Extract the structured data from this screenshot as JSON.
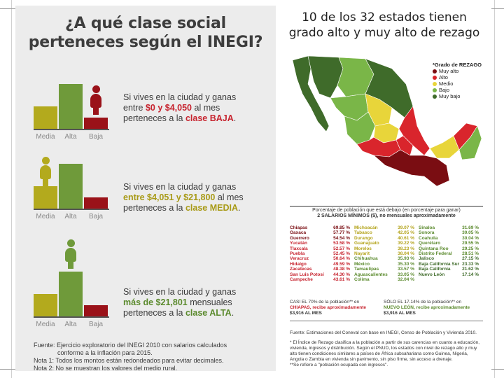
{
  "left": {
    "title": "¿A qué clase social perteneces según el INEGI?",
    "bar_labels": [
      "Media",
      "Alta",
      "Baja"
    ],
    "blocks": [
      {
        "line1": "Si vives en la ciudad y ganas",
        "line2_pre": "entre ",
        "line2_hl": "$0 y $4,050",
        "line2_post": " al mes",
        "line3_pre": "perteneces a la ",
        "line3_hl": "clase BAJA",
        "line3_post": ".",
        "values": {
          "media": 0.42,
          "alta": 0.82,
          "baja": 0.22
        }
      },
      {
        "line1": "Si vives en la ciudad y ganas",
        "line2_pre": "",
        "line2_hl": "entre $4,051 y $21,800",
        "line2_post": " al mes",
        "line3_pre": "perteneces a la ",
        "line3_hl": "clase MEDIA",
        "line3_post": ".",
        "values": {
          "media": 0.42,
          "alta": 0.82,
          "baja": 0.22
        }
      },
      {
        "line1": "Si vives en la ciudad y ganas",
        "line2_pre": "",
        "line2_hl": "más de $21,801",
        "line2_post": " mensuales",
        "line3_pre": "perteneces a la ",
        "line3_hl": "clase ALTA",
        "line3_post": ".",
        "values": {
          "media": 0.42,
          "alta": 0.82,
          "baja": 0.22
        }
      }
    ],
    "fuente1": "Fuente: Ejercicio exploratorio del INEGI 2010 con salarios calculados",
    "fuente2": "conforme a la inflación para 2015.",
    "nota1": "Nota 1: Todos los montos están redondeados para evitar decimales.",
    "nota2": "Nota 2: No se muestran los valores del medio rural."
  },
  "right": {
    "title1": "10 de los 32 estados tienen",
    "title2": "grado alto y muy alto de rezago",
    "legend_title": "*Grado de REZAGO",
    "legend": [
      {
        "label": "Muy alto",
        "color": "#7a0d12"
      },
      {
        "label": "Alto",
        "color": "#d9252c"
      },
      {
        "label": "Medio",
        "color": "#e8d53a"
      },
      {
        "label": "Bajo",
        "color": "#7ab648"
      },
      {
        "label": "Muy bajo",
        "color": "#3f6b2a"
      }
    ],
    "table_title_1": "Porcentaje de población que está debajo (en porcentaje para ganar)",
    "table_title_2": "2 SALARIOS MÍNIMOS ($), no mensuales aproximadamente",
    "col1": [
      [
        "Chiapas",
        "69.85 %"
      ],
      [
        "Oaxaca",
        "57.77 %"
      ],
      [
        "Guerrero",
        "54.54 %"
      ],
      [
        "Yucatán",
        "53.58 %"
      ],
      [
        "Tlaxcala",
        "52.57 %"
      ],
      [
        "Puebla",
        "52.45 %"
      ],
      [
        "Veracruz",
        "50.64 %"
      ],
      [
        "Hidalgo",
        "49.59 %"
      ],
      [
        "Zacatecas",
        "48.38 %"
      ],
      [
        "San Luis Potosí",
        "44.30 %"
      ],
      [
        "Campeche",
        "43.61 %"
      ]
    ],
    "col2": [
      [
        "Michoacán",
        "39.07 %"
      ],
      [
        "Tabasco",
        "42.05 %"
      ],
      [
        "Durango",
        "40.61 %"
      ],
      [
        "Guanajuato",
        "39.22 %"
      ],
      [
        "Morelos",
        "38.23 %"
      ],
      [
        "Nayarit",
        "38.04 %"
      ],
      [
        "Chihuahua",
        "35.93 %"
      ],
      [
        "México",
        "35.30 %"
      ],
      [
        "Tamaulipas",
        "33.57 %"
      ],
      [
        "Aguascalientes",
        "33.05 %"
      ],
      [
        "Colima",
        "32.04 %"
      ]
    ],
    "col3": [
      [
        "Sinaloa",
        "31.69 %"
      ],
      [
        "Sonora",
        "30.05 %"
      ],
      [
        "Coahuila",
        "30.04 %"
      ],
      [
        "Querétaro",
        "29.55 %"
      ],
      [
        "Quintana Roo",
        "29.25 %"
      ],
      [
        "Distrito Federal",
        "28.51 %"
      ],
      [
        "Jalisco",
        "27.15 %"
      ],
      [
        "Baja California Sur",
        "23.33 %"
      ],
      [
        "Baja California",
        "21.62 %"
      ],
      [
        "Nuevo León",
        "17.14 %"
      ]
    ],
    "summary1_a": "CASI EL 70% de la población** en",
    "summary1_b": "CHIAPAS, recibe aproximadamente",
    "summary1_c": "$3,916 AL MES",
    "summary2_a": "SÓLO EL 17.14% de la población** en",
    "summary2_b": "NUEVO LEÓN, recibe aproximadamente",
    "summary2_c": "$3,916 AL MES",
    "source": "Fuente: Estimaciones del Coneval con base en INEGI, Censo de Población y Vivienda 2010.",
    "note1": "* El Índice de Rezago clasifica a la población a partir de sus carencias en cuanto a educación, vivienda, ingresos y distribución. Según el PNUD, los estados con nivel de rezago alto y muy alto tienen condiciones similares a países de África subsahariana como Guinea, Nigeria, Angola o Zambia en vivienda sin pavimento, sin piso firme, sin acceso a drenaje.",
    "note2": "**Se refiere a \"población ocupada con ingresos\"."
  }
}
